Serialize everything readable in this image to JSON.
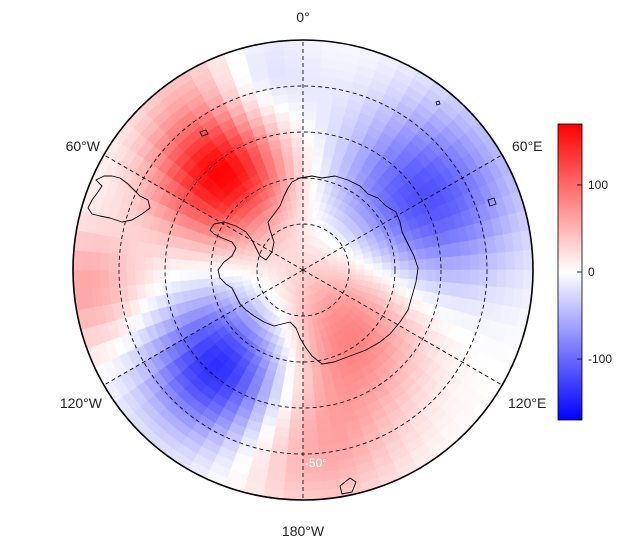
{
  "map": {
    "projection": "south-polar-stereographic",
    "longitude_labels": [
      "0°",
      "60°E",
      "120°E",
      "180°W",
      "120°W",
      "60°W"
    ],
    "latitude_label": "-50°",
    "gridlines": "dashed",
    "coastlines": "Antarctica, Southern Ocean islands, southern South America",
    "field_pattern": [
      {
        "lon_deg": -40,
        "colat_frac": 0.55,
        "value": 170,
        "spread": 0.3
      },
      {
        "lon_deg": -140,
        "colat_frac": 0.55,
        "value": -150,
        "spread": 0.32
      },
      {
        "lon_deg": 60,
        "colat_frac": 0.6,
        "value": -120,
        "spread": 0.4
      },
      {
        "lon_deg": 140,
        "colat_frac": 0.3,
        "value": 90,
        "spread": 0.35
      },
      {
        "lon_deg": 175,
        "colat_frac": 0.75,
        "value": 60,
        "spread": 0.35
      },
      {
        "lon_deg": -95,
        "colat_frac": 0.95,
        "value": 60,
        "spread": 0.28
      },
      {
        "lon_deg": -30,
        "colat_frac": 0.95,
        "value": 30,
        "spread": 0.25
      },
      {
        "lon_deg": -15,
        "colat_frac": 0.8,
        "value": -40,
        "spread": 0.25
      }
    ]
  },
  "colorbar": {
    "ticks": [
      {
        "value": 100,
        "label": "100"
      },
      {
        "value": 0,
        "label": "0"
      },
      {
        "value": -100,
        "label": "-100"
      }
    ],
    "range": [
      -170,
      170
    ],
    "colors": {
      "low": "#0000ff",
      "mid": "#ffffff",
      "high": "#ff0000"
    }
  }
}
